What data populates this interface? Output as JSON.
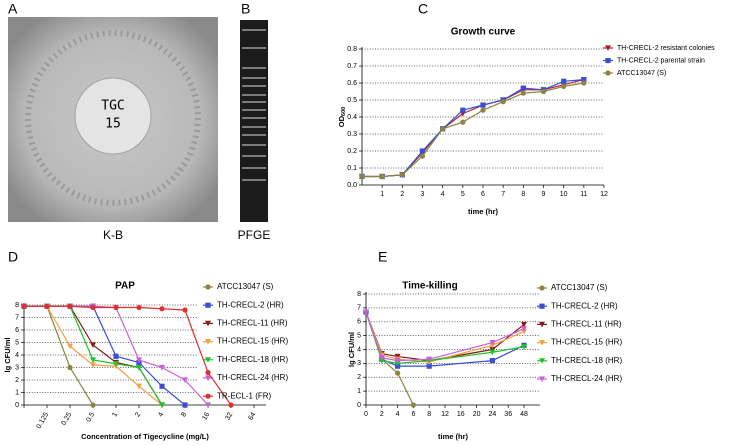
{
  "panels": [
    {
      "label": "A",
      "caption": "K-B",
      "disk_text": [
        "TGC",
        "15"
      ]
    },
    {
      "label": "B",
      "caption": "PFGE"
    }
  ],
  "chart_data": [
    {
      "type": "line",
      "panel_label": "C",
      "title": "Growth curve",
      "x_label": "time (hr)",
      "y_label": "OD",
      "y_label_sub": "600",
      "x": [
        0,
        1,
        2,
        3,
        4,
        5,
        6,
        7,
        8,
        9,
        10,
        11
      ],
      "xlim": [
        0,
        12
      ],
      "xticks": [
        1,
        2,
        3,
        4,
        5,
        6,
        7,
        8,
        9,
        10,
        11,
        12
      ],
      "ylim": [
        0,
        0.8
      ],
      "yticks": [
        {
          "value": 0,
          "label": "0.0"
        },
        0.1,
        0.2,
        0.3,
        0.4,
        0.5,
        0.6,
        0.7,
        0.8
      ],
      "grid": true,
      "legend": "upper right",
      "series": [
        {
          "name": "TH-CRECL-2 resistant colonies",
          "color": "#b0202a",
          "marker": "triangle-down",
          "values": [
            0.05,
            0.05,
            0.06,
            0.19,
            0.33,
            0.42,
            0.47,
            0.5,
            0.56,
            0.56,
            0.59,
            0.62
          ]
        },
        {
          "name": "TH-CRECL-2 parental strain",
          "color": "#3a4fd6",
          "marker": "square",
          "values": [
            0.05,
            0.05,
            0.06,
            0.2,
            0.33,
            0.44,
            0.47,
            0.5,
            0.57,
            0.56,
            0.61,
            0.62
          ]
        },
        {
          "name": "ATCC13047 (S)",
          "color": "#8c8540",
          "marker": "circle",
          "values": [
            0.05,
            0.05,
            0.06,
            0.17,
            0.33,
            0.37,
            0.44,
            0.49,
            0.54,
            0.55,
            0.58,
            0.6
          ]
        }
      ]
    },
    {
      "type": "line",
      "panel_label": "D",
      "title": "PAP",
      "x_label": "Concentration of Tigecycline (mg/L)",
      "y_label": "lg CFU/ml",
      "categories": [
        null,
        "0.125",
        "0.25",
        "0.5",
        "1",
        "2",
        "4",
        "8",
        "16",
        "32",
        "64"
      ],
      "ylim": [
        0,
        8
      ],
      "yticks": [
        0,
        1,
        2,
        3,
        4,
        5,
        6,
        7,
        8
      ],
      "grid": true,
      "legend": "right",
      "series": [
        {
          "name": "ATCC13047 (S)",
          "color": "#8c8540",
          "marker": "circle",
          "values": [
            7.9,
            7.9,
            3.0,
            0,
            null,
            null,
            null,
            null,
            null,
            null,
            null
          ]
        },
        {
          "name": "TH-CRECL-2 (HR)",
          "color": "#3a4fd6",
          "marker": "square",
          "values": [
            7.9,
            7.9,
            7.9,
            7.9,
            3.9,
            3.4,
            1.5,
            0,
            null,
            null,
            null
          ]
        },
        {
          "name": "TH-CRECL-11 (HR)",
          "color": "#8b1a1a",
          "marker": "triangle-down",
          "values": [
            7.9,
            7.9,
            7.9,
            4.8,
            3.4,
            3.0,
            0,
            null,
            null,
            null,
            null
          ]
        },
        {
          "name": "TH-CRECL-15 (HR)",
          "color": "#f5a040",
          "marker": "triangle-down",
          "values": [
            7.9,
            7.9,
            4.7,
            3.2,
            3.1,
            1.5,
            0,
            null,
            null,
            null,
            null
          ]
        },
        {
          "name": "TH-CRECL-18 (HR)",
          "color": "#22c22a",
          "marker": "triangle-down",
          "values": [
            7.9,
            7.9,
            7.9,
            3.6,
            3.3,
            3.0,
            0,
            null,
            null,
            null,
            null
          ]
        },
        {
          "name": "TH-CRECL-24 (HR)",
          "color": "#c860d8",
          "marker": "triangle-down",
          "values": [
            7.9,
            7.9,
            7.9,
            7.9,
            7.8,
            3.6,
            3.0,
            2.0,
            0,
            null,
            null
          ]
        },
        {
          "name": "TR-ECL-1 (FR)",
          "color": "#e03030",
          "marker": "circle",
          "values": [
            7.9,
            7.9,
            7.9,
            7.8,
            7.8,
            7.8,
            7.7,
            7.6,
            2.6,
            0,
            null
          ]
        }
      ]
    },
    {
      "type": "line",
      "panel_label": "E",
      "title": "Time-killing",
      "x_label": "time (hr)",
      "y_label": "lg CFU/ml",
      "x_scale": "tick-spaced",
      "xlim": [
        0,
        48
      ],
      "xticks": [
        0,
        2,
        4,
        6,
        8,
        12,
        16,
        20,
        24,
        36,
        48
      ],
      "ylim": [
        0,
        8
      ],
      "yticks": [
        0,
        1,
        2,
        3,
        4,
        5,
        6,
        7,
        8
      ],
      "grid": true,
      "legend": "right",
      "series": [
        {
          "name": "ATCC13047 (S)",
          "color": "#8c8540",
          "marker": "circle",
          "x": [
            0,
            2,
            4,
            6
          ],
          "values": [
            6.7,
            3.3,
            2.3,
            0
          ]
        },
        {
          "name": "TH-CRECL-2 (HR)",
          "color": "#3a4fd6",
          "marker": "square",
          "x": [
            0,
            2,
            4,
            8,
            24,
            48
          ],
          "values": [
            6.7,
            3.3,
            2.8,
            2.8,
            3.2,
            4.3
          ]
        },
        {
          "name": "TH-CRECL-11 (HR)",
          "color": "#8b1a1a",
          "marker": "triangle-down",
          "x": [
            0,
            2,
            4,
            8,
            24,
            48
          ],
          "values": [
            6.7,
            3.7,
            3.5,
            3.2,
            4.0,
            5.8
          ]
        },
        {
          "name": "TH-CRECL-15 (HR)",
          "color": "#f5a040",
          "marker": "triangle-down",
          "x": [
            0,
            2,
            4,
            8,
            24,
            48
          ],
          "values": [
            6.7,
            3.6,
            3.3,
            3.1,
            4.3,
            5.3
          ]
        },
        {
          "name": "TH-CRECL-18 (HR)",
          "color": "#22c22a",
          "marker": "triangle-down",
          "x": [
            0,
            2,
            4,
            8,
            24,
            48
          ],
          "values": [
            6.7,
            3.2,
            3.0,
            3.2,
            3.8,
            4.2
          ]
        },
        {
          "name": "TH-CRECL-24 (HR)",
          "color": "#c860d8",
          "marker": "triangle-down",
          "x": [
            0,
            2,
            4,
            8,
            24,
            48
          ],
          "values": [
            6.7,
            3.4,
            3.2,
            3.3,
            4.5,
            5.5
          ]
        }
      ]
    }
  ]
}
